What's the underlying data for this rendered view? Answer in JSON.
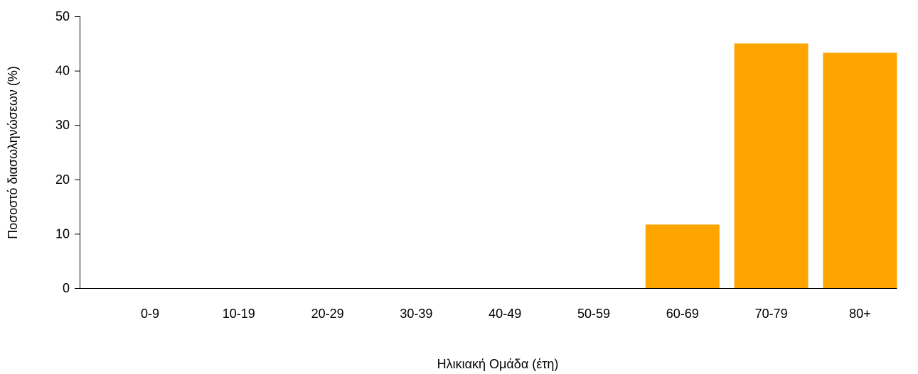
{
  "chart_data": {
    "type": "bar",
    "title": "",
    "xlabel": "Ηλικιακή Ομάδα (έτη)",
    "ylabel": "Ποσοστό διασωληνώσεων (%)",
    "categories": [
      "0-9",
      "10-19",
      "20-29",
      "30-39",
      "40-49",
      "50-59",
      "60-69",
      "70-79",
      "80+"
    ],
    "values": [
      0,
      0,
      0,
      0,
      0,
      0,
      11.7,
      45.0,
      43.3
    ],
    "ylim": [
      0,
      50
    ],
    "yticks": [
      0,
      10,
      20,
      30,
      40,
      50
    ],
    "bar_color": "#FFA500",
    "grid": false,
    "legend": "none"
  }
}
